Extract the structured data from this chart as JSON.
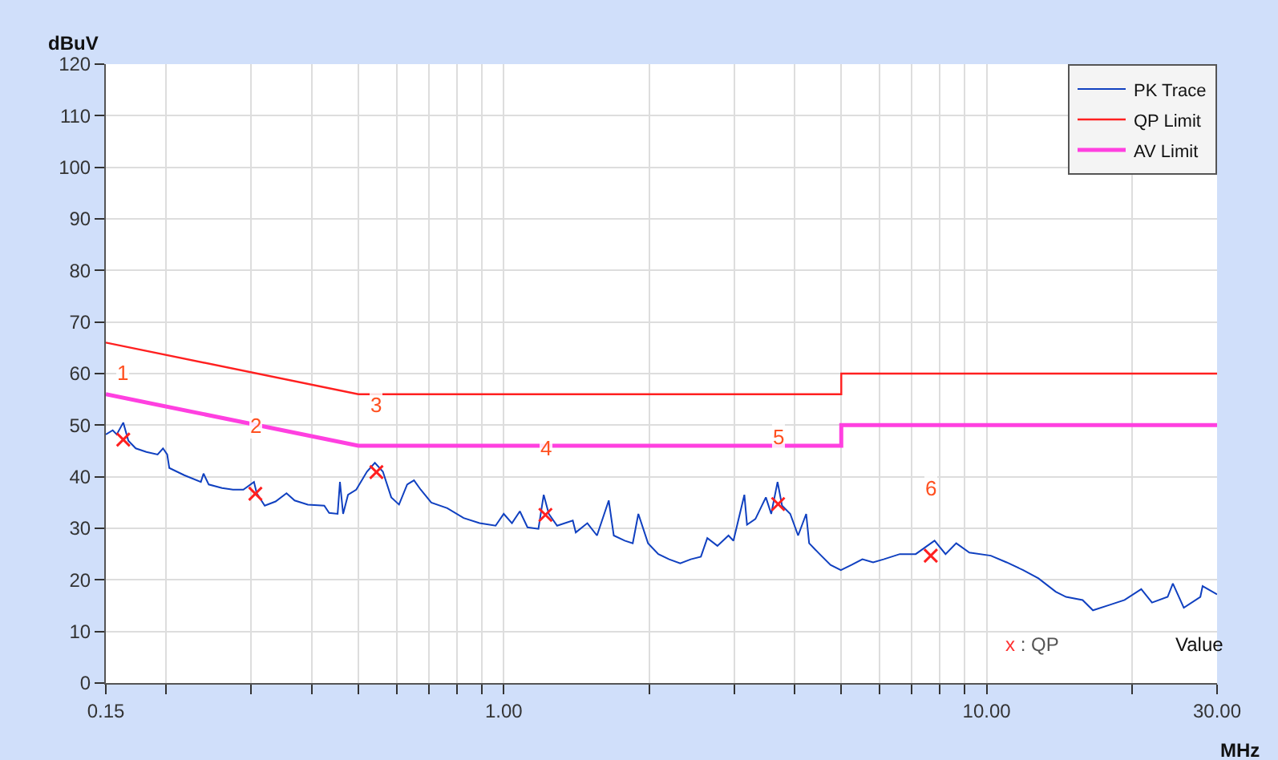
{
  "chart_data": {
    "type": "line",
    "xlabel": "MHz",
    "ylabel": "dBuV",
    "log": "x",
    "grid": true,
    "legend": "top right",
    "xlim": [
      0.15,
      30
    ],
    "ylim": [
      0,
      120
    ],
    "xticks": [
      {
        "value": 0.15,
        "label": "0.15"
      },
      {
        "value": 0.2,
        "label": null
      },
      {
        "value": 0.3,
        "label": null
      },
      {
        "value": 0.4,
        "label": null
      },
      {
        "value": 0.5,
        "label": null
      },
      {
        "value": 0.6,
        "label": null
      },
      {
        "value": 0.7,
        "label": null
      },
      {
        "value": 0.8,
        "label": null
      },
      {
        "value": 0.9,
        "label": null
      },
      {
        "value": 1,
        "label": "1.00"
      },
      {
        "value": 2,
        "label": null
      },
      {
        "value": 3,
        "label": null
      },
      {
        "value": 4,
        "label": null
      },
      {
        "value": 5,
        "label": null
      },
      {
        "value": 6,
        "label": null
      },
      {
        "value": 7,
        "label": null
      },
      {
        "value": 8,
        "label": null
      },
      {
        "value": 9,
        "label": null
      },
      {
        "value": 10,
        "label": "10.00"
      },
      {
        "value": 20,
        "label": null
      },
      {
        "value": 30,
        "label": "30.00"
      }
    ],
    "yticks": [
      0,
      10,
      20,
      30,
      40,
      50,
      60,
      70,
      80,
      90,
      100,
      110,
      120
    ],
    "series": [
      {
        "name": "PK Trace",
        "type": "line",
        "color": "#1040c0",
        "x": [
          0.15,
          0.155,
          0.158,
          0.163,
          0.167,
          0.173,
          0.182,
          0.192,
          0.197,
          0.201,
          0.203,
          0.218,
          0.236,
          0.239,
          0.245,
          0.261,
          0.275,
          0.289,
          0.304,
          0.308,
          0.32,
          0.337,
          0.355,
          0.369,
          0.393,
          0.425,
          0.435,
          0.453,
          0.458,
          0.465,
          0.476,
          0.495,
          0.521,
          0.541,
          0.562,
          0.585,
          0.607,
          0.631,
          0.652,
          0.673,
          0.708,
          0.764,
          0.826,
          0.891,
          0.962,
          1.0,
          1.04,
          1.08,
          1.12,
          1.18,
          1.21,
          1.24,
          1.29,
          1.39,
          1.41,
          1.49,
          1.56,
          1.65,
          1.69,
          1.78,
          1.85,
          1.9,
          1.99,
          2.09,
          2.2,
          2.32,
          2.44,
          2.56,
          2.64,
          2.77,
          2.92,
          2.99,
          3.15,
          3.19,
          3.32,
          3.49,
          3.58,
          3.69,
          3.77,
          3.92,
          4.07,
          4.23,
          4.29,
          4.51,
          4.75,
          4.99,
          5.25,
          5.53,
          5.82,
          6.12,
          6.61,
          7.13,
          7.8,
          8.22,
          8.65,
          9.21,
          10.2,
          11.0,
          11.9,
          12.8,
          13.9,
          14.6,
          15.8,
          16.6,
          17.9,
          19.3,
          20.9,
          22.0,
          23.7,
          24.3,
          25.6,
          27.7,
          28.0,
          30.0
        ],
        "values": [
          48.2,
          49.0,
          48.2,
          50.5,
          47.0,
          45.5,
          44.8,
          44.3,
          45.5,
          44.3,
          41.7,
          40.3,
          39.0,
          40.6,
          38.5,
          37.8,
          37.5,
          37.5,
          39.0,
          36.8,
          34.4,
          35.2,
          36.8,
          35.4,
          34.6,
          34.4,
          33.0,
          32.8,
          39.0,
          32.8,
          36.5,
          37.5,
          41.0,
          42.7,
          41.0,
          36.0,
          34.6,
          38.5,
          39.3,
          37.5,
          35.0,
          33.9,
          32.0,
          31.0,
          30.5,
          32.8,
          31.0,
          33.3,
          30.2,
          29.9,
          36.5,
          32.8,
          30.5,
          31.5,
          29.2,
          31.0,
          28.6,
          35.4,
          28.6,
          27.6,
          27.1,
          32.8,
          27.1,
          25.0,
          24.0,
          23.2,
          24.0,
          24.5,
          28.1,
          26.6,
          28.6,
          27.6,
          36.5,
          30.7,
          31.8,
          36.0,
          32.8,
          39.0,
          34.4,
          32.8,
          28.6,
          32.8,
          27.1,
          25.0,
          22.9,
          21.9,
          22.9,
          24.0,
          23.4,
          24.0,
          25.0,
          25.0,
          27.6,
          25.0,
          27.1,
          25.3,
          24.7,
          23.4,
          21.9,
          20.3,
          17.7,
          16.7,
          16.1,
          14.1,
          15.1,
          16.1,
          18.2,
          15.6,
          16.7,
          19.3,
          14.6,
          16.7,
          18.8,
          17.2
        ]
      },
      {
        "name": "QP Limit",
        "type": "line",
        "color": "#ff2020",
        "x": [
          0.15,
          0.5,
          5,
          5,
          30
        ],
        "values": [
          66,
          56,
          56,
          60,
          60
        ]
      },
      {
        "name": "AV Limit",
        "type": "line",
        "color": "#ff40e0",
        "x": [
          0.15,
          0.5,
          5,
          5,
          30
        ],
        "values": [
          56,
          46,
          46,
          50,
          50
        ]
      },
      {
        "type": "scatter",
        "marker": "cross",
        "color": "#ff2020",
        "x": [
          0.163,
          0.306,
          0.545,
          1.22,
          3.7,
          7.66
        ],
        "values": [
          47.2,
          36.7,
          40.9,
          32.6,
          34.7,
          24.7
        ]
      }
    ],
    "annotations": [
      {
        "text": "1",
        "x": 0.163,
        "y": 47.2
      },
      {
        "text": "2",
        "x": 0.306,
        "y": 36.7
      },
      {
        "text": "3",
        "x": 0.545,
        "y": 40.9
      },
      {
        "text": "4",
        "x": 1.22,
        "y": 32.6
      },
      {
        "text": "5",
        "x": 3.7,
        "y": 34.7
      },
      {
        "text": "6",
        "x": 7.66,
        "y": 24.7
      },
      "x : QP",
      "Value"
    ]
  }
}
